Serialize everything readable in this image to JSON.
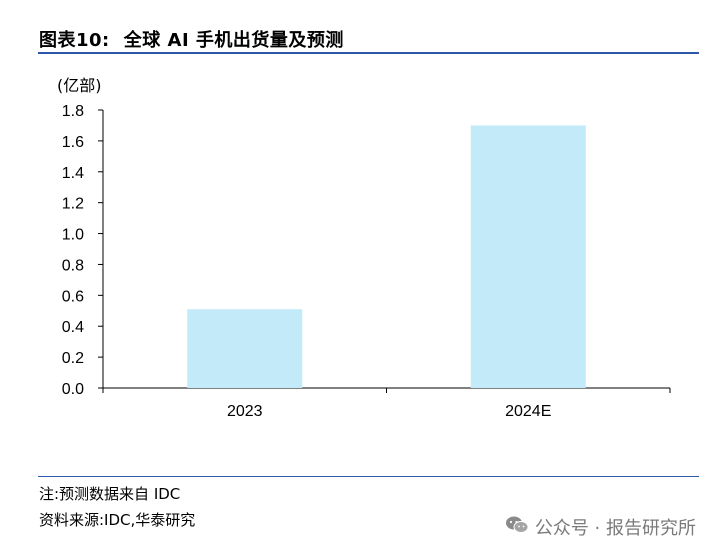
{
  "header": {
    "figure_label": "图表10:",
    "title": "全球 AI 手机出货量及预测"
  },
  "chart_data": {
    "type": "bar",
    "unit_label": "(亿部)",
    "categories": [
      "2023",
      "2024E"
    ],
    "values": [
      0.51,
      1.7
    ],
    "yticks": [
      "0.0",
      "0.2",
      "0.4",
      "0.6",
      "0.8",
      "1.0",
      "1.2",
      "1.4",
      "1.6",
      "1.8"
    ],
    "ylim": [
      0,
      1.8
    ],
    "bar_color": "#c2eaf8",
    "grid": false
  },
  "footer": {
    "note": "注:预测数据来自 IDC",
    "source": "资料来源:IDC,华泰研究"
  },
  "watermark": {
    "icon": "wechat-icon",
    "text": "公众号 · 报告研究所"
  },
  "colors": {
    "rule": "#2b58a8",
    "axis": "#000000",
    "watermark": "#7a7a7a"
  }
}
